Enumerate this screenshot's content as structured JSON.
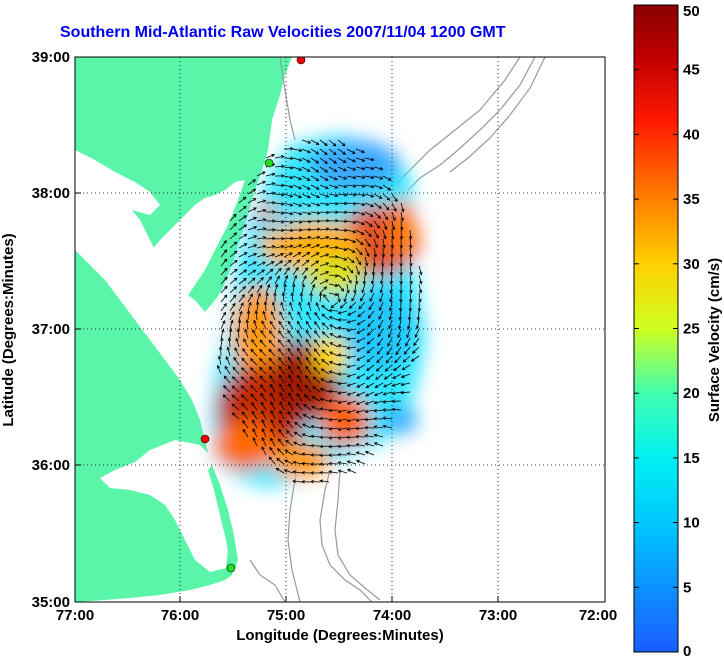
{
  "title": "Southern Mid-Atlantic Raw Velocities 2007/11/04 1200 GMT",
  "x_axis": {
    "label": "Longitude (Degrees:Minutes)",
    "ticks": [
      "77:00",
      "76:00",
      "75:00",
      "74:00",
      "73:00",
      "72:00"
    ]
  },
  "y_axis": {
    "label": "Latitude (Degrees:Minutes)",
    "ticks": [
      "39:00",
      "38:00",
      "37:00",
      "36:00",
      "35:00"
    ]
  },
  "colorbar": {
    "label": "Surface Velocity (cm/s)",
    "ticks": [
      "0",
      "5",
      "10",
      "15",
      "20",
      "25",
      "30",
      "35",
      "40",
      "45",
      "50"
    ],
    "range": [
      0,
      50
    ]
  },
  "colors": {
    "land": "#5af5a8",
    "water": "#ffffff",
    "bathymetry": "#999999",
    "title": "#0000ee",
    "station_red": "#ee0000",
    "station_green": "#22dd22"
  },
  "grid": "dotted",
  "legend": "none"
}
